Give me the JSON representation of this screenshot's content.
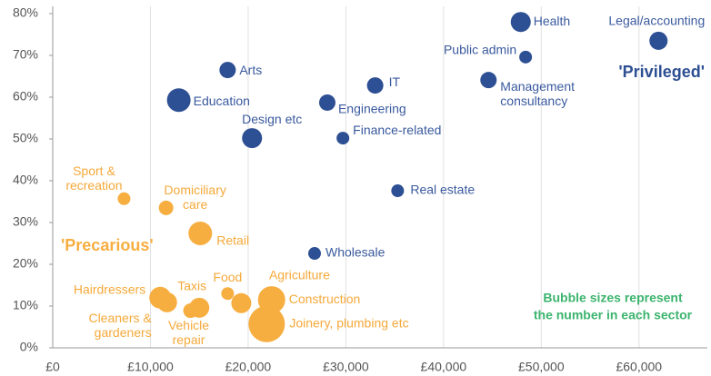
{
  "chart_data": {
    "type": "scatter",
    "xlim": [
      0,
      67000
    ],
    "ylim": [
      0,
      80
    ],
    "xticks": [
      {
        "value": 0,
        "label": "£0"
      },
      {
        "value": 10000,
        "label": "£10,000"
      },
      {
        "value": 20000,
        "label": "£20,000"
      },
      {
        "value": 30000,
        "label": "£30,000"
      },
      {
        "value": 40000,
        "label": "£40,000"
      },
      {
        "value": 50000,
        "label": "£50,000"
      },
      {
        "value": 60000,
        "label": "£60,000"
      }
    ],
    "yticks": [
      {
        "value": 0,
        "label": "0%"
      },
      {
        "value": 10,
        "label": "10%"
      },
      {
        "value": 20,
        "label": "20%"
      },
      {
        "value": 30,
        "label": "30%"
      },
      {
        "value": 40,
        "label": "40%"
      },
      {
        "value": 50,
        "label": "50%"
      },
      {
        "value": 60,
        "label": "60%"
      },
      {
        "value": 70,
        "label": "70%"
      },
      {
        "value": 80,
        "label": "80%"
      }
    ],
    "grid": true,
    "series": [
      {
        "name": "'Privileged'",
        "color": "#2d4f93",
        "points": [
          {
            "label": "Health",
            "x": 47900,
            "y": 78,
            "size": 121
          },
          {
            "label": "Legal/accounting",
            "x": 62000,
            "y": 73.5,
            "size": 100
          },
          {
            "label": "Public admin",
            "x": 48400,
            "y": 69.6,
            "size": 49
          },
          {
            "label": "Management consultancy",
            "x": 44600,
            "y": 64.1,
            "size": 81
          },
          {
            "label": "IT",
            "x": 33000,
            "y": 62.8,
            "size": 81
          },
          {
            "label": "Arts",
            "x": 17900,
            "y": 66.5,
            "size": 81
          },
          {
            "label": "Education",
            "x": 12900,
            "y": 59.3,
            "size": 169
          },
          {
            "label": "Engineering",
            "x": 28100,
            "y": 58.7,
            "size": 81
          },
          {
            "label": "Design etc",
            "x": 20400,
            "y": 50.2,
            "size": 121
          },
          {
            "label": "Finance-related",
            "x": 29700,
            "y": 50.2,
            "size": 49
          },
          {
            "label": "Real estate",
            "x": 35300,
            "y": 37.6,
            "size": 49
          },
          {
            "label": "Wholesale",
            "x": 26800,
            "y": 22.6,
            "size": 49
          }
        ]
      },
      {
        "name": "'Precarious'",
        "color": "#f7ae40",
        "points": [
          {
            "label": "Sport & recreation",
            "x": 7300,
            "y": 35.7,
            "size": 49
          },
          {
            "label": "Domiciliary care",
            "x": 11600,
            "y": 33.5,
            "size": 64
          },
          {
            "label": "Retail",
            "x": 15100,
            "y": 27.4,
            "size": 169
          },
          {
            "label": "Food",
            "x": 17900,
            "y": 13,
            "size": 49
          },
          {
            "label": "Taxis",
            "x": 15000,
            "y": 9.6,
            "size": 121
          },
          {
            "label": "Hairdressers",
            "x": 11000,
            "y": 12,
            "size": 144
          },
          {
            "label": "Cleaners & gardeners",
            "x": 11700,
            "y": 10.9,
            "size": 121
          },
          {
            "label": "Vehicle repair",
            "x": 14100,
            "y": 8.9,
            "size": 64
          },
          {
            "label": "Agriculture",
            "x": 19300,
            "y": 10.7,
            "size": 121
          },
          {
            "label": "Construction",
            "x": 22400,
            "y": 11.5,
            "size": 225
          },
          {
            "label": "Joinery, plumbing etc",
            "x": 21900,
            "y": 5.7,
            "size": 400
          }
        ]
      }
    ],
    "note": [
      "Bubble sizes represent",
      "the number in each sector"
    ],
    "note_color": "#3cb46e"
  }
}
